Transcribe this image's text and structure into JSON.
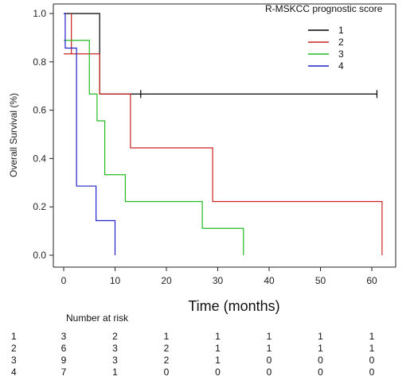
{
  "chart_data": {
    "type": "line",
    "subtype": "kaplan-meier-step",
    "title": "",
    "xlabel": "Time (months)",
    "ylabel": "Overall Survival (%)",
    "xlim": [
      0,
      65
    ],
    "ylim": [
      0,
      1.0
    ],
    "xticks": [
      "0",
      "10",
      "20",
      "30",
      "40",
      "50",
      "60"
    ],
    "xtick_values": [
      0,
      10,
      20,
      30,
      40,
      50,
      60
    ],
    "yticks": [
      "0.0",
      "0.2",
      "0.4",
      "0.6",
      "0.8",
      "1.0"
    ],
    "ytick_values": [
      0,
      0.2,
      0.4,
      0.6,
      0.8,
      1.0
    ],
    "grid": false,
    "legend": {
      "title": "R-MSKCC prognostic score",
      "position": "top-right"
    },
    "series": [
      {
        "name": "1",
        "color": "#000000",
        "steps": [
          [
            0,
            1.0
          ],
          [
            7,
            0.667
          ],
          [
            61,
            0.667
          ]
        ],
        "censored": [
          [
            15,
            0.667
          ],
          [
            61,
            0.667
          ]
        ]
      },
      {
        "name": "2",
        "color": "#cc2222",
        "steps": [
          [
            0,
            0.833
          ],
          [
            1.5,
            1.0
          ],
          [
            1.5,
            0.833
          ],
          [
            7,
            0.667
          ],
          [
            13,
            0.444
          ],
          [
            29,
            0.222
          ],
          [
            62,
            0.0
          ]
        ],
        "censored": []
      },
      {
        "name": "3",
        "color": "#22bb22",
        "steps": [
          [
            0,
            0.889
          ],
          [
            5,
            0.667
          ],
          [
            6.5,
            0.556
          ],
          [
            8,
            0.333
          ],
          [
            12,
            0.222
          ],
          [
            27,
            0.111
          ],
          [
            35,
            0.0
          ]
        ],
        "censored": []
      },
      {
        "name": "4",
        "color": "#2222cc",
        "steps": [
          [
            0,
            1.0
          ],
          [
            0.3,
            0.857
          ],
          [
            2.5,
            0.286
          ],
          [
            6.3,
            0.143
          ],
          [
            10,
            0.0
          ]
        ],
        "censored": []
      }
    ],
    "risk_table": {
      "title": "Number at risk",
      "rows": [
        {
          "label": "1",
          "counts": [
            "3",
            "2",
            "1",
            "1",
            "1",
            "1",
            "1"
          ]
        },
        {
          "label": "2",
          "counts": [
            "6",
            "3",
            "2",
            "1",
            "1",
            "1",
            "1"
          ]
        },
        {
          "label": "3",
          "counts": [
            "9",
            "3",
            "2",
            "1",
            "0",
            "0",
            "0"
          ]
        },
        {
          "label": "4",
          "counts": [
            "7",
            "1",
            "0",
            "0",
            "0",
            "0",
            "0"
          ]
        }
      ]
    }
  }
}
